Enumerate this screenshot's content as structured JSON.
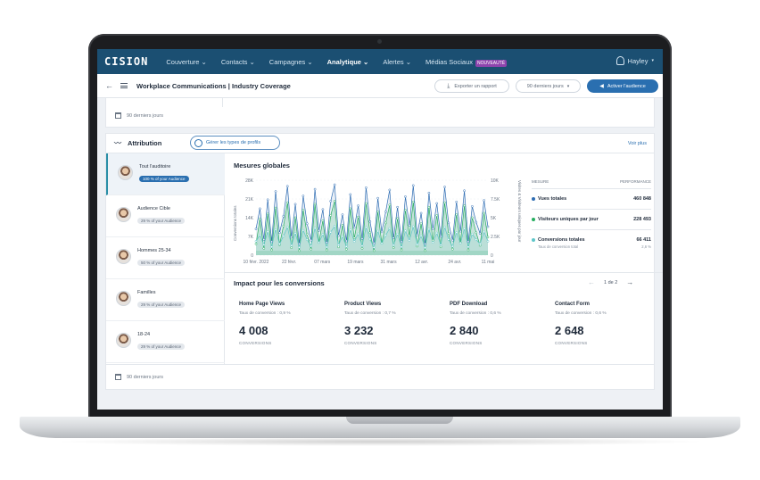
{
  "brand": "CISION",
  "nav": {
    "items": [
      "Couverture ⌄",
      "Contacts ⌄",
      "Campagnes ⌄",
      "Analytique ⌄",
      "Alertes ⌄",
      "Médias Sociaux"
    ],
    "new_badge": "NOUVEAUTÉ",
    "user": "Hayley"
  },
  "header": {
    "title": "Workplace Communications | Industry Coverage",
    "export_label": "Exporter un rapport",
    "period_label": "90 derniers jours",
    "activate_label": "Activer l'audience"
  },
  "top_date": "90 derniers jours",
  "bottom_date": "90 derniers jours",
  "attribution": {
    "title": "Attribution",
    "profiles_button": "Gérer les types de profils",
    "see_more": "Voir plus"
  },
  "audiences": [
    {
      "name": "Tout l'auditoire",
      "share": "100 % of your Audience",
      "active": true
    },
    {
      "name": "Audience Cible",
      "share": "29 % of your Audience",
      "active": false
    },
    {
      "name": "Hommes 25-34",
      "share": "50 % of your Audience",
      "active": false
    },
    {
      "name": "Familles",
      "share": "29 % of your Audience",
      "active": false
    },
    {
      "name": "18-24",
      "share": "29 % of your Audience",
      "active": false
    }
  ],
  "chart_data": {
    "type": "line",
    "title": "Mesures globales",
    "ylabel": "Conversions totales",
    "y2label": "Visites & Visiteurs uniques par jour",
    "ylim": [
      0,
      28000
    ],
    "y2lim": [
      0,
      10000
    ],
    "y_ticks": [
      "28K",
      "21K",
      "14K",
      "7K",
      "0"
    ],
    "y2_ticks": [
      "10K",
      "7.5K",
      "5K",
      "2.5K",
      "0"
    ],
    "x_ticks": [
      "10 févr. 2022",
      "22 févr.",
      "07 mars",
      "19 mars",
      "31 mars",
      "12 avr.",
      "24 avr.",
      "11 mai"
    ],
    "series": [
      {
        "name": "Vues totales",
        "color": "#2f6db3",
        "axis": "y2",
        "values": [
          3500,
          6200,
          2100,
          7400,
          1800,
          8500,
          3000,
          5200,
          9200,
          2400,
          6800,
          1500,
          7900,
          4200,
          2000,
          8800,
          3300,
          6100,
          1700,
          7200,
          9400,
          2600,
          5400,
          1900,
          8100,
          3700,
          6600,
          2200,
          9000,
          4500,
          1600,
          7600,
          3100,
          5800,
          8700,
          2300,
          6400,
          1800,
          7800,
          4000,
          9300,
          2700,
          5600,
          1500,
          8300,
          3500,
          6900,
          2500,
          9100,
          4300,
          2000,
          7100,
          3200,
          8600,
          1800,
          6500,
          4400,
          2900,
          7300,
          3800
        ]
      },
      {
        "name": "Visiteurs uniques par jour",
        "color": "#27ae60",
        "axis": "y2",
        "values": [
          1500,
          4800,
          900,
          5500,
          700,
          6300,
          1400,
          3900,
          7000,
          1000,
          5000,
          600,
          6000,
          2800,
          800,
          6800,
          1700,
          4600,
          700,
          5300,
          7200,
          1100,
          4000,
          800,
          6200,
          2300,
          5100,
          900,
          6900,
          3000,
          600,
          5800,
          1600,
          4300,
          6700,
          1000,
          4900,
          700,
          6000,
          2600,
          7100,
          1200,
          4200,
          600,
          6400,
          2000,
          5300,
          1100,
          7000,
          2900,
          800,
          5400,
          1700,
          6600,
          700,
          5000,
          3000,
          1300,
          5600,
          2400
        ]
      },
      {
        "name": "Conversions totales",
        "color": "#5fc6c9",
        "axis": "y",
        "values": [
          5200,
          7500,
          3900,
          8800,
          3100,
          9600,
          4200,
          7100,
          10500,
          3600,
          8200,
          2900,
          9300,
          5800,
          3400,
          10100,
          4700,
          7800,
          3000,
          8600,
          10800,
          3800,
          7000,
          3200,
          9500,
          5100,
          8000,
          3500,
          10400,
          6000,
          2900,
          9000,
          4400,
          7400,
          10000,
          3700,
          7900,
          3100,
          9100,
          5500,
          10700,
          4000,
          7200,
          2800,
          9700,
          4800,
          8300,
          3800,
          10500,
          5900,
          3300,
          8500,
          4500,
          9900,
          3100,
          7900,
          5800,
          4200,
          8700,
          5200
        ]
      }
    ]
  },
  "metrics": {
    "header_label": "MESURE",
    "header_value": "PERFORMANCE",
    "rows": [
      {
        "label": "Vues totales",
        "value": "460 848",
        "color": "#2f6db3"
      },
      {
        "label": "Visiteurs uniques par jour",
        "value": "228 493",
        "color": "#27ae60"
      },
      {
        "label": "Conversions totales",
        "value": "66 411",
        "color": "#5fc6c9"
      }
    ],
    "rate_label": "Taux de conversion total",
    "rate_value": "2,6 %"
  },
  "impact": {
    "title": "Impact pour les conversions",
    "pager": "1 de 2",
    "cards": [
      {
        "name": "Home Page Views",
        "rate": "Taux de conversion : 0,9 %",
        "value": "4 008",
        "unit": "CONVERSIONS"
      },
      {
        "name": "Product Views",
        "rate": "Taux de conversion : 0,7 %",
        "value": "3 232",
        "unit": "CONVERSIONS"
      },
      {
        "name": "PDF Download",
        "rate": "Taux de conversion : 0,6 %",
        "value": "2 840",
        "unit": "CONVERSIONS"
      },
      {
        "name": "Contact Form",
        "rate": "Taux de conversion : 0,6 %",
        "value": "2 648",
        "unit": "CONVERSIONS"
      }
    ]
  }
}
